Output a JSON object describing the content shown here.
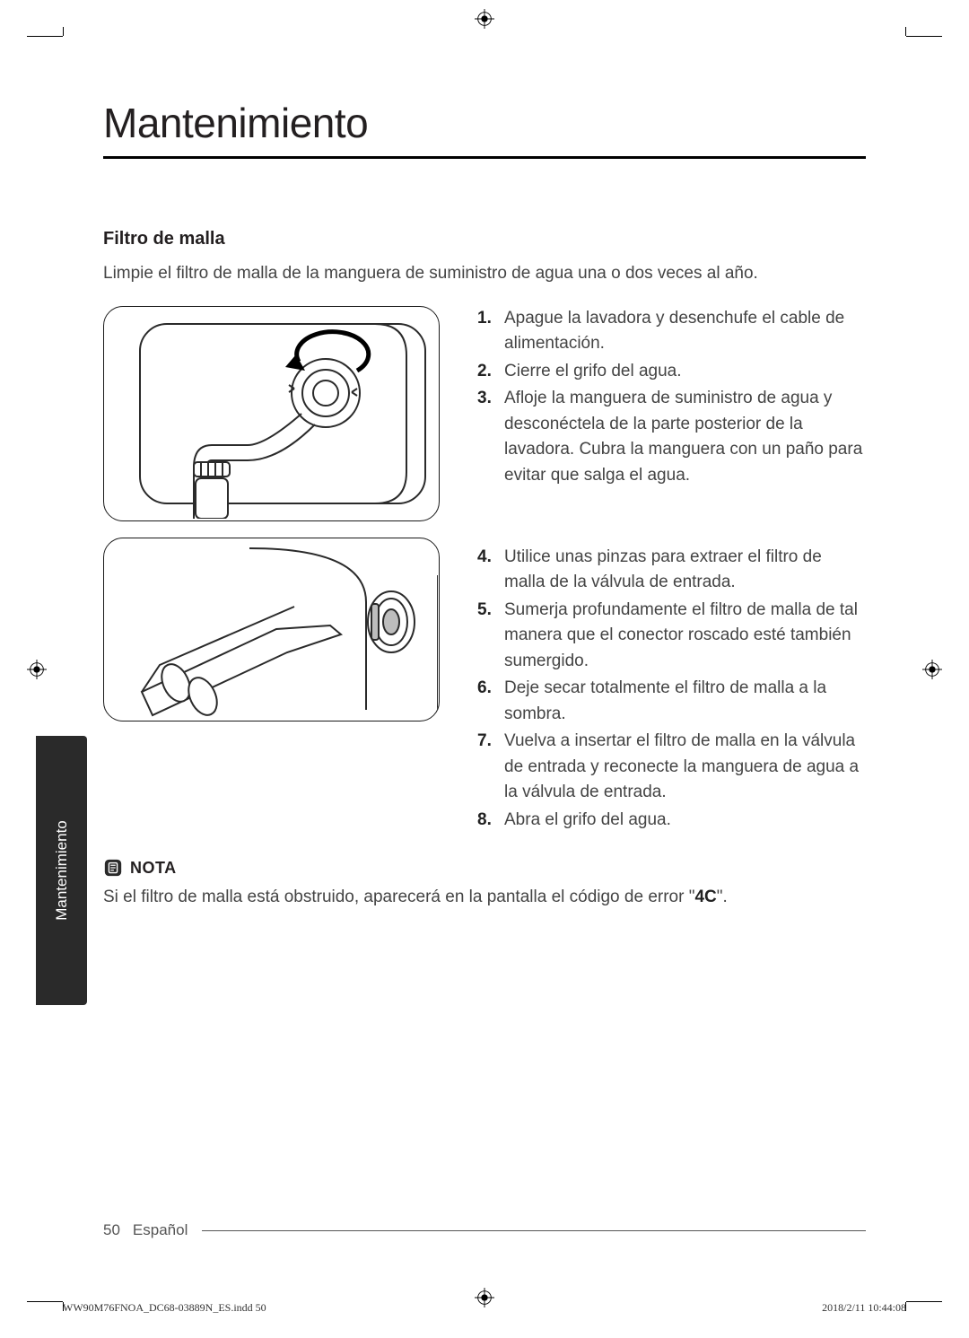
{
  "title": "Mantenimiento",
  "subheading": "Filtro de malla",
  "intro": "Limpie el filtro de malla de la manguera de suministro de agua una o dos veces al año.",
  "steps_a": [
    {
      "n": "1",
      "text": "Apague la lavadora y desenchufe el cable de alimentación."
    },
    {
      "n": "2",
      "text": "Cierre el grifo del agua."
    },
    {
      "n": "3",
      "text": "Afloje la manguera de suministro de agua y desconéctela de la parte posterior de la lavadora. Cubra la manguera con un paño para evitar que salga el agua."
    }
  ],
  "steps_b": [
    {
      "n": "4",
      "text": "Utilice unas pinzas para extraer el filtro de malla de la válvula de entrada."
    },
    {
      "n": "5",
      "text": "Sumerja profundamente el filtro de malla de tal manera que el conector roscado esté también sumergido."
    },
    {
      "n": "6",
      "text": "Deje secar totalmente el filtro de malla a la sombra."
    },
    {
      "n": "7",
      "text": "Vuelva a insertar el filtro de malla en la válvula de entrada y reconecte la manguera de agua a la válvula de entrada."
    },
    {
      "n": "8",
      "text": "Abra el grifo del agua."
    }
  ],
  "note_label": "NOTA",
  "note_prefix": "Si el filtro de malla está obstruido, aparecerá en la pantalla el código de error \"",
  "note_code": "4C",
  "note_suffix": "\".",
  "side_tab": "Mantenimiento",
  "page_number": "50",
  "page_lang": "Español",
  "print_file": "WW90M76FNOA_DC68-03889N_ES.indd   50",
  "print_time": "2018/2/11   10:44:08"
}
